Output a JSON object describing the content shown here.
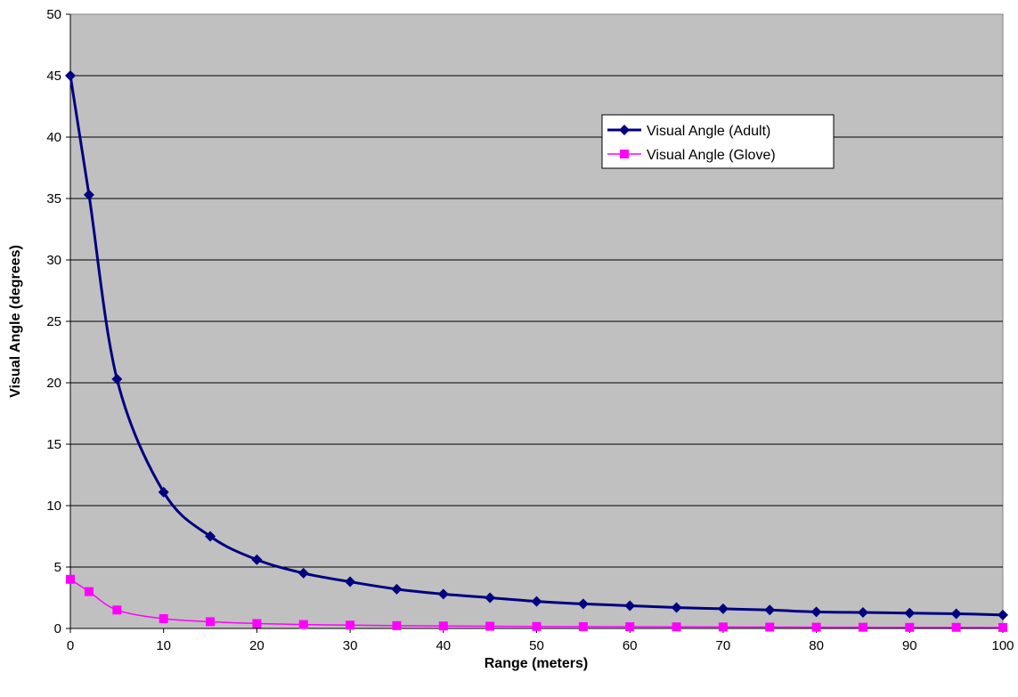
{
  "chart_data": {
    "type": "line",
    "title": "",
    "xlabel": "Range (meters)",
    "ylabel": "Visual Angle (degrees)",
    "xlim": [
      0,
      100
    ],
    "ylim": [
      0,
      50
    ],
    "x_ticks": [
      "0",
      "10",
      "20",
      "30",
      "40",
      "50",
      "60",
      "70",
      "80",
      "90",
      "100"
    ],
    "y_ticks": [
      "0",
      "5",
      "10",
      "15",
      "20",
      "25",
      "30",
      "35",
      "40",
      "45",
      "50"
    ],
    "grid": "horizontal",
    "plot_background": "#c0c0c0",
    "smoothed": true,
    "legend": {
      "position": "top-right",
      "boxed": true
    },
    "series": [
      {
        "name": "Visual Angle (Adult)",
        "color": "#000080",
        "marker": "diamond",
        "points": [
          [
            0,
            45.0
          ],
          [
            2,
            35.3
          ],
          [
            5,
            20.3
          ],
          [
            10,
            11.1
          ],
          [
            15,
            7.5
          ],
          [
            20,
            5.6
          ],
          [
            25,
            4.5
          ],
          [
            30,
            3.8
          ],
          [
            35,
            3.2
          ],
          [
            40,
            2.8
          ],
          [
            45,
            2.5
          ],
          [
            50,
            2.2
          ],
          [
            55,
            2.0
          ],
          [
            60,
            1.85
          ],
          [
            65,
            1.7
          ],
          [
            70,
            1.6
          ],
          [
            75,
            1.5
          ],
          [
            80,
            1.35
          ],
          [
            85,
            1.3
          ],
          [
            90,
            1.25
          ],
          [
            95,
            1.2
          ],
          [
            100,
            1.1
          ]
        ]
      },
      {
        "name": "Visual Angle (Glove)",
        "color": "#ff00ff",
        "marker": "square",
        "points": [
          [
            0,
            4.0
          ],
          [
            2,
            3.0
          ],
          [
            5,
            1.5
          ],
          [
            10,
            0.8
          ],
          [
            15,
            0.55
          ],
          [
            20,
            0.4
          ],
          [
            25,
            0.32
          ],
          [
            30,
            0.27
          ],
          [
            35,
            0.23
          ],
          [
            40,
            0.2
          ],
          [
            45,
            0.18
          ],
          [
            50,
            0.16
          ],
          [
            55,
            0.15
          ],
          [
            60,
            0.14
          ],
          [
            65,
            0.13
          ],
          [
            70,
            0.12
          ],
          [
            75,
            0.11
          ],
          [
            80,
            0.1
          ],
          [
            85,
            0.1
          ],
          [
            90,
            0.09
          ],
          [
            95,
            0.09
          ],
          [
            100,
            0.08
          ]
        ]
      }
    ]
  }
}
